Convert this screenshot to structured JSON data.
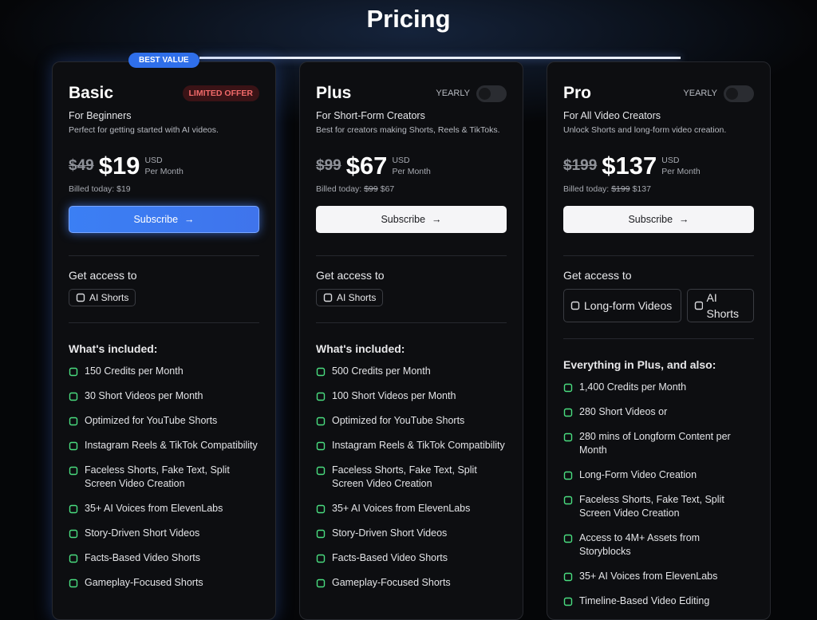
{
  "header": {
    "title": "Pricing"
  },
  "plans": [
    {
      "name": "Basic",
      "badge": "BEST VALUE",
      "tag": "LIMITED OFFER",
      "audience": "For Beginners",
      "description": "Perfect for getting started with AI videos.",
      "old_price": "$49",
      "price": "$19",
      "currency": "USD",
      "period": "Per Month",
      "billed_label": "Billed today:",
      "billed_price": "$19",
      "button": "Subscribe",
      "access_heading": "Get access to",
      "access": [
        "AI Shorts"
      ],
      "included_heading": "What's included:",
      "features": [
        "150 Credits per Month",
        "30 Short Videos per Month",
        "Optimized for YouTube Shorts",
        "Instagram Reels & TikTok Compatibility",
        "Faceless Shorts, Fake Text, Split Screen Video Creation",
        "35+ AI Voices from ElevenLabs",
        "Story-Driven Short Videos",
        "Facts-Based Video Shorts",
        "Gameplay-Focused Shorts"
      ]
    },
    {
      "name": "Plus",
      "toggle": "YEARLY",
      "audience": "For Short-Form Creators",
      "description": "Best for creators making Shorts, Reels & TikToks.",
      "old_price": "$99",
      "price": "$67",
      "currency": "USD",
      "period": "Per Month",
      "billed_label": "Billed today:",
      "billed_old": "$99",
      "billed_price": "$67",
      "button": "Subscribe",
      "access_heading": "Get access to",
      "access": [
        "AI Shorts"
      ],
      "included_heading": "What's included:",
      "features": [
        "500 Credits per Month",
        "100 Short Videos per Month",
        "Optimized for YouTube Shorts",
        "Instagram Reels & TikTok Compatibility",
        "Faceless Shorts, Fake Text, Split Screen Video Creation",
        "35+ AI Voices from ElevenLabs",
        "Story-Driven Short Videos",
        "Facts-Based Video Shorts",
        "Gameplay-Focused Shorts"
      ]
    },
    {
      "name": "Pro",
      "toggle": "YEARLY",
      "audience": "For All Video Creators",
      "description": "Unlock Shorts and long-form video creation.",
      "old_price": "$199",
      "price": "$137",
      "currency": "USD",
      "period": "Per Month",
      "billed_label": "Billed today:",
      "billed_old": "$199",
      "billed_price": "$137",
      "button": "Subscribe",
      "access_heading": "Get access to",
      "access": [
        "Long-form Videos",
        "AI Shorts"
      ],
      "included_heading": "Everything in Plus, and also:",
      "features": [
        "1,400 Credits per Month",
        "280 Short Videos or",
        "280 mins of Longform Content per Month",
        "Long-Form Video Creation",
        "Faceless Shorts, Fake Text, Split Screen Video Creation",
        "Access to 4M+ Assets from Storyblocks",
        "35+ AI Voices from ElevenLabs",
        "Timeline-Based Video Editing"
      ]
    }
  ]
}
